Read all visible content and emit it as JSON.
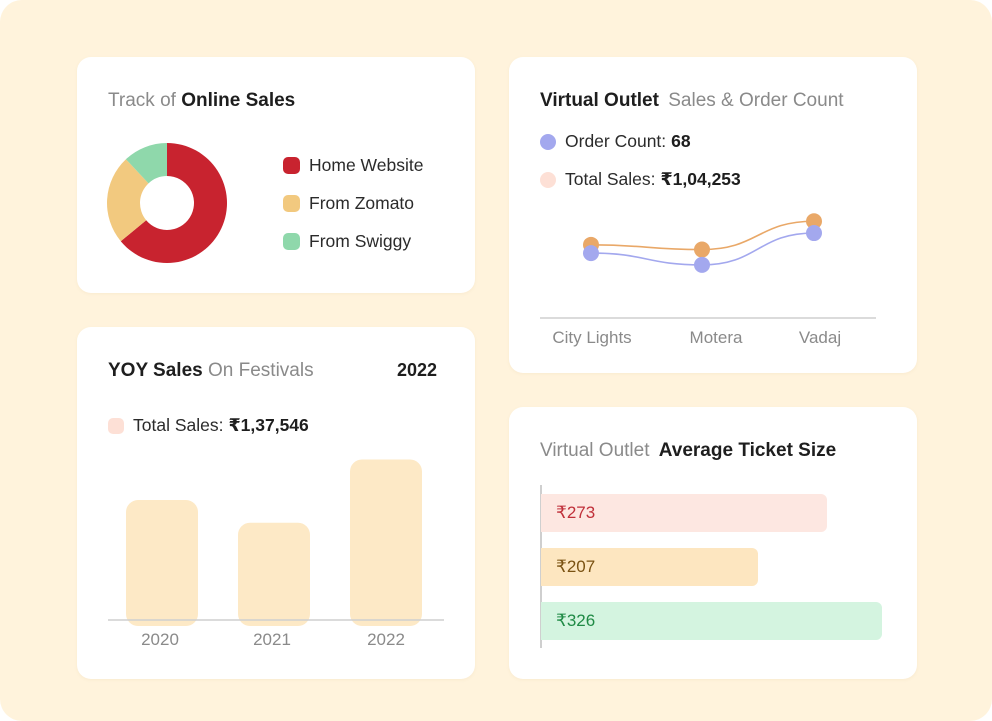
{
  "colors": {
    "background": "#fff3dc",
    "home_website": "#c8232f",
    "zomato": "#f2c97f",
    "swiggy": "#8fd8ab",
    "order_count": "#a3a8ee",
    "total_sales_line": "#e9a868",
    "total_sales_swatch": "#fde0d6",
    "festival_bar": "#fde9c6"
  },
  "online_sales": {
    "title_light": "Track of",
    "title_bold": "Online Sales",
    "legend": [
      {
        "label": "Home Website",
        "color": "#c8232f"
      },
      {
        "label": "From Zomato",
        "color": "#f2c97f"
      },
      {
        "label": "From Swiggy",
        "color": "#8fd8ab"
      }
    ],
    "chart_data": {
      "type": "pie",
      "labels": [
        "Home Website",
        "From Zomato",
        "From Swiggy"
      ],
      "values": [
        64,
        24,
        12
      ],
      "donut": true
    }
  },
  "virtual_outlet_sales": {
    "title_bold": "Virtual Outlet",
    "title_light": "Sales & Order Count",
    "order_count_label": "Order Count:",
    "order_count_value": "68",
    "total_sales_label": "Total Sales:",
    "total_sales_value": "₹1,04,253",
    "chart_data": {
      "type": "line",
      "categories": [
        "City Lights",
        "Motera",
        "Vadaj"
      ],
      "series": [
        {
          "name": "Total Sales",
          "values": [
            62,
            58,
            82
          ],
          "color": "#e9a868"
        },
        {
          "name": "Order Count",
          "values": [
            55,
            45,
            72
          ],
          "color": "#a3a8ee"
        }
      ],
      "ylim": [
        0,
        100
      ]
    }
  },
  "yoy_sales": {
    "title_bold": "YOY Sales",
    "title_light": "On Festivals",
    "year": "2022",
    "total_sales_label": "Total Sales:",
    "total_sales_value": "₹1,37,546",
    "chart_data": {
      "type": "bar",
      "categories": [
        "2020",
        "2021",
        "2022"
      ],
      "values": [
        127,
        103,
        170
      ],
      "ylim": [
        0,
        180
      ]
    }
  },
  "avg_ticket": {
    "title_light": "Virtual Outlet",
    "title_bold": "Average Ticket Size",
    "chart_data": {
      "type": "bar",
      "orientation": "horizontal",
      "categories": [
        "₹273",
        "₹207",
        "₹326"
      ],
      "values": [
        273,
        207,
        326
      ],
      "labels": [
        "₹273",
        "₹207",
        "₹326"
      ],
      "colors": [
        {
          "fill": "#fde7e1",
          "text": "#c0303a"
        },
        {
          "fill": "#fde6c0",
          "text": "#7a5212"
        },
        {
          "fill": "#d4f4e0",
          "text": "#1f8a45"
        }
      ]
    }
  }
}
